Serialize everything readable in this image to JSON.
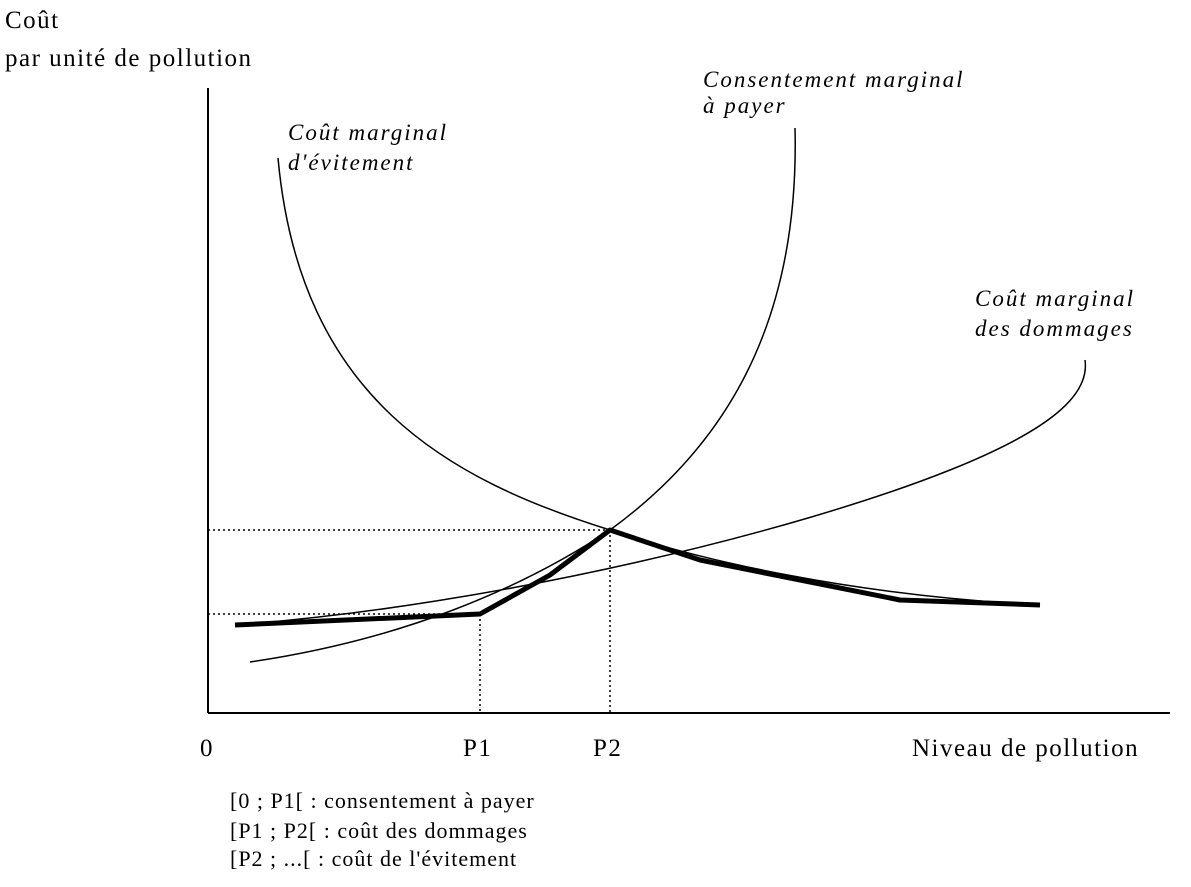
{
  "axis_label": {
    "line1": "Coût",
    "line2": "par unité de pollution"
  },
  "curves": {
    "willingness": {
      "line1": "Consentement marginal",
      "line2": "à payer"
    },
    "avoidance": {
      "line1": "Coût marginal",
      "line2": "d'évitement"
    },
    "damage": {
      "line1": "Coût marginal",
      "line2": "des dommages"
    }
  },
  "x_ticks": [
    "0",
    "P1",
    "P2"
  ],
  "x_axis_label": "Niveau de pollution",
  "legend": [
    "[0 ; P1[ :  consentement à payer",
    "[P1 ; P2[ : coût des dommages",
    "[P2 ; ...[ : coût de l'évitement"
  ]
}
